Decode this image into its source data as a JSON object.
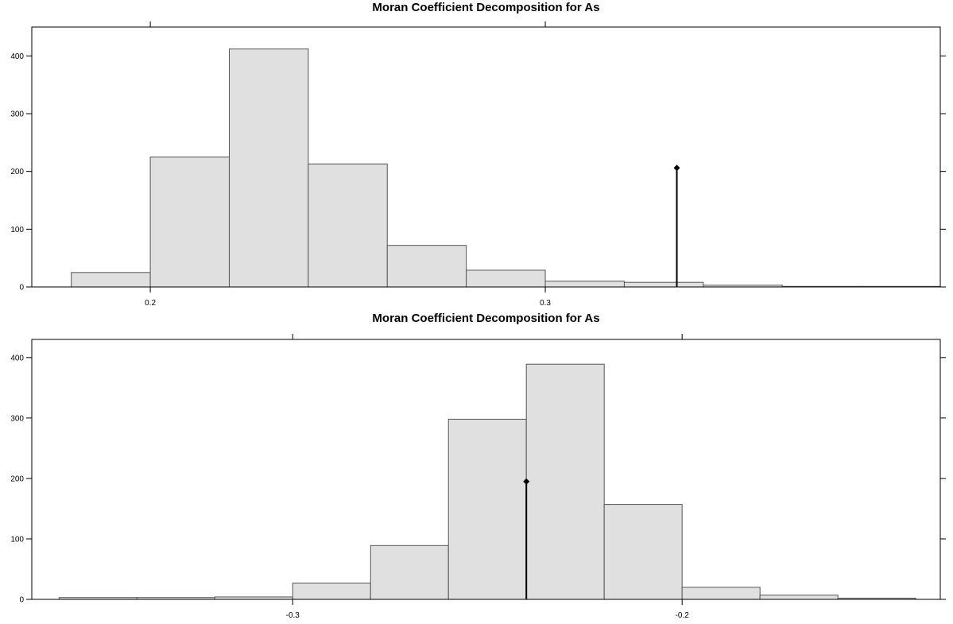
{
  "chart_data": [
    {
      "type": "histogram",
      "title": "Moran Coefficient Decomposition for As",
      "xlabel": "",
      "ylabel": "",
      "xlim": [
        0.17,
        0.4
      ],
      "ylim": [
        0,
        450
      ],
      "bin_edges": [
        0.18,
        0.2,
        0.22,
        0.24,
        0.26,
        0.28,
        0.3,
        0.32,
        0.34,
        0.36,
        0.38,
        0.4
      ],
      "counts": [
        25,
        225,
        412,
        213,
        72,
        29,
        10,
        8,
        3,
        1,
        1
      ],
      "x_ticks": [
        0.2,
        0.3
      ],
      "x_tick_labels": [
        "0.2",
        "0.3"
      ],
      "y_ticks": [
        0,
        100,
        200,
        300,
        400
      ],
      "y_tick_labels": [
        "0",
        "100",
        "200",
        "300",
        "400"
      ],
      "observed": {
        "x": 0.3333,
        "y": 206
      },
      "grid": false,
      "bar_color": "#e0e0e0",
      "bar_border_color": "#555555",
      "marker_color": "#000000"
    },
    {
      "type": "histogram",
      "title": "Moran Coefficient Decomposition for As",
      "xlabel": "",
      "ylabel": "",
      "xlim": [
        -0.367,
        -0.1337
      ],
      "ylim": [
        0,
        430
      ],
      "bin_edges": [
        -0.36,
        -0.34,
        -0.32,
        -0.3,
        -0.28,
        -0.26,
        -0.24,
        -0.22,
        -0.2,
        -0.18,
        -0.16,
        -0.14
      ],
      "counts": [
        3,
        3,
        4,
        27,
        89,
        298,
        389,
        157,
        20,
        7,
        2
      ],
      "x_ticks": [
        -0.3,
        -0.2
      ],
      "x_tick_labels": [
        "-0.3",
        "-0.2"
      ],
      "y_ticks": [
        0,
        100,
        200,
        300,
        400
      ],
      "y_tick_labels": [
        "0",
        "100",
        "200",
        "300",
        "400"
      ],
      "observed": {
        "x": -0.24,
        "y": 195
      },
      "grid": false,
      "bar_color": "#e0e0e0",
      "bar_border_color": "#555555",
      "marker_color": "#000000"
    }
  ]
}
